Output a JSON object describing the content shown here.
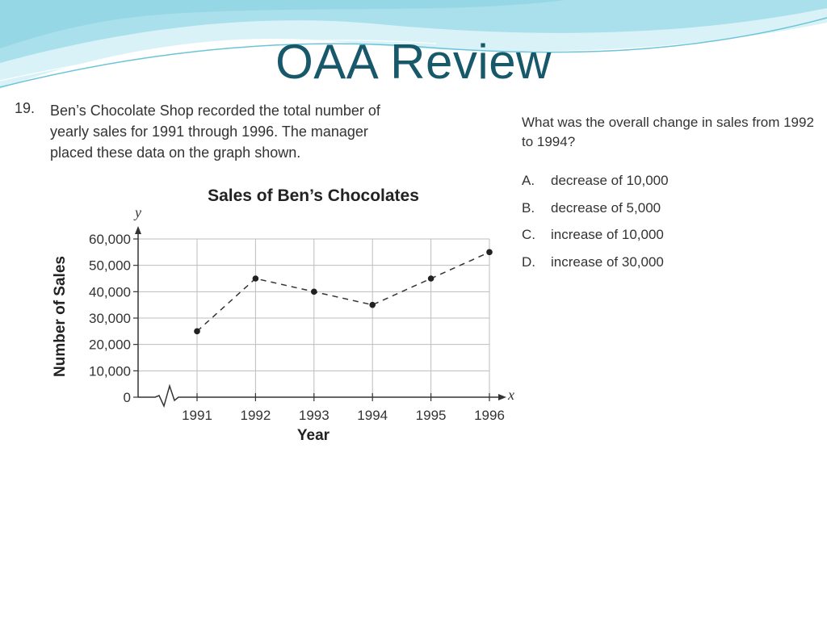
{
  "slide": {
    "title": "OAA Review"
  },
  "question": {
    "number": "19.",
    "text": "Ben’s Chocolate Shop recorded the total number of yearly sales for 1991 through 1996. The manager placed these data on the graph shown.",
    "prompt": "What was the overall change in sales from 1992 to 1994?",
    "choices": [
      {
        "letter": "A.",
        "text": "decrease of 10,000"
      },
      {
        "letter": "B.",
        "text": "decrease of 5,000"
      },
      {
        "letter": "C.",
        "text": "increase of 10,000"
      },
      {
        "letter": "D.",
        "text": "increase of 30,000"
      }
    ]
  },
  "colors": {
    "title": "#17596b",
    "wave_light": "#cdeef5",
    "wave_mid": "#8fd3e3"
  },
  "chart_data": {
    "type": "line",
    "title": "Sales of Ben’s Chocolates",
    "xlabel": "Year",
    "ylabel": "Number of Sales",
    "x_axis_var": "x",
    "y_axis_var": "y",
    "categories": [
      "1991",
      "1992",
      "1993",
      "1994",
      "1995",
      "1996"
    ],
    "values": [
      25000,
      45000,
      40000,
      35000,
      45000,
      55000
    ],
    "yticks": [
      "0",
      "10,000",
      "20,000",
      "30,000",
      "40,000",
      "50,000",
      "60,000"
    ],
    "ylim": [
      0,
      60000
    ],
    "line_style": "dashed",
    "grid": true
  }
}
